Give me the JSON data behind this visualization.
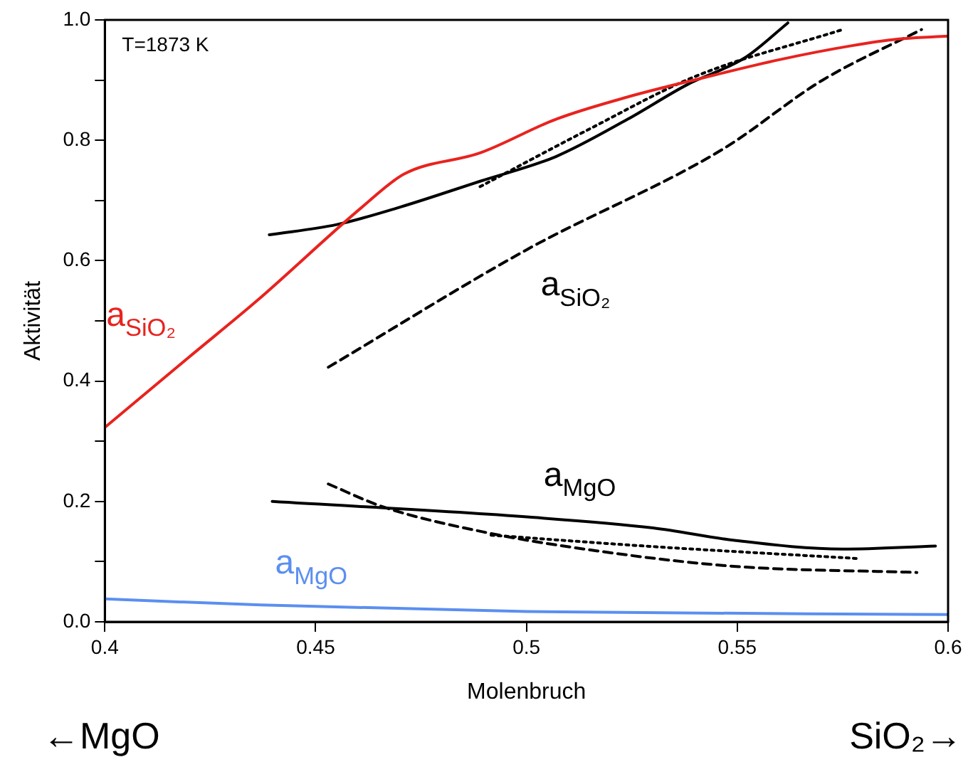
{
  "chart_data": {
    "type": "line",
    "xlabel": "Molenbruch",
    "ylabel": "Aktivität",
    "xlim": [
      0.4,
      0.6
    ],
    "xticks": [
      {
        "value": 0.4,
        "label": "0.4"
      },
      0.45,
      0.5,
      0.55,
      {
        "value": 0.6,
        "label": "0.6"
      }
    ],
    "ylim": [
      0,
      1
    ],
    "yticks": [
      {
        "value": 0,
        "label": "0.0"
      },
      {
        "value": 0.1,
        "label": null
      },
      0.2,
      {
        "value": 0.3,
        "label": null
      },
      0.4,
      {
        "value": 0.5,
        "label": null
      },
      0.6,
      {
        "value": 0.7,
        "label": null
      },
      0.8,
      {
        "value": 0.9,
        "label": null
      },
      {
        "value": 1,
        "label": "1.0"
      }
    ],
    "grid": false,
    "legend": false,
    "marker": "none",
    "series": [
      {
        "name": "a$_{SiO₂}$",
        "color": "#e8231f",
        "line_style": "solid",
        "x": [
          0.4,
          0.42,
          0.436,
          0.461,
          0.471,
          0.489,
          0.507,
          0.524,
          0.542,
          0.56,
          0.577,
          0.588,
          0.6
        ],
        "values": [
          0.323,
          0.44,
          0.533,
          0.689,
          0.744,
          0.779,
          0.835,
          0.872,
          0.904,
          0.934,
          0.957,
          0.968,
          0.973
        ]
      },
      {
        "color": "#000000",
        "line_style": "solid",
        "x": [
          0.439,
          0.455,
          0.47,
          0.489,
          0.507,
          0.524,
          0.538,
          0.552,
          0.562
        ],
        "values": [
          0.643,
          0.66,
          0.689,
          0.732,
          0.773,
          0.835,
          0.892,
          0.938,
          0.995
        ]
      },
      {
        "color": "#000000",
        "line_style": "dotted",
        "x": [
          0.489,
          0.515,
          0.54,
          0.575
        ],
        "values": [
          0.723,
          0.819,
          0.906,
          0.984
        ]
      },
      {
        "name": "a$_{SiO₂}$",
        "color": "#000000",
        "line_style": "dashed",
        "x": [
          0.453,
          0.5,
          0.5465,
          0.57,
          0.5937
        ],
        "values": [
          0.423,
          0.618,
          0.785,
          0.899,
          0.984
        ]
      },
      {
        "name": "a$_{MgO}$",
        "color": "#000000",
        "line_style": "solid",
        "x": [
          0.4397,
          0.5007,
          0.53,
          0.5497,
          0.575,
          0.597
        ],
        "values": [
          0.2,
          0.174,
          0.156,
          0.135,
          0.121,
          0.126
        ]
      },
      {
        "color": "#000000",
        "line_style": "dashed",
        "x": [
          0.453,
          0.466,
          0.49,
          0.5166,
          0.5497,
          0.5926
        ],
        "values": [
          0.229,
          0.191,
          0.149,
          0.118,
          0.092,
          0.082
        ]
      },
      {
        "color": "#000000",
        "line_style": "dotted",
        "x": [
          0.4916,
          0.53,
          0.579
        ],
        "values": [
          0.144,
          0.125,
          0.105
        ]
      },
      {
        "name": "a$_{MgO}$",
        "color": "#5b8ff0",
        "line_style": "solid",
        "x": [
          0.4,
          0.437,
          0.5,
          0.6
        ],
        "values": [
          0.038,
          0.028,
          0.017,
          0.012
        ]
      }
    ],
    "annotations": [
      "T=1873 K",
      "←MgO",
      "SiO₂→"
    ]
  }
}
